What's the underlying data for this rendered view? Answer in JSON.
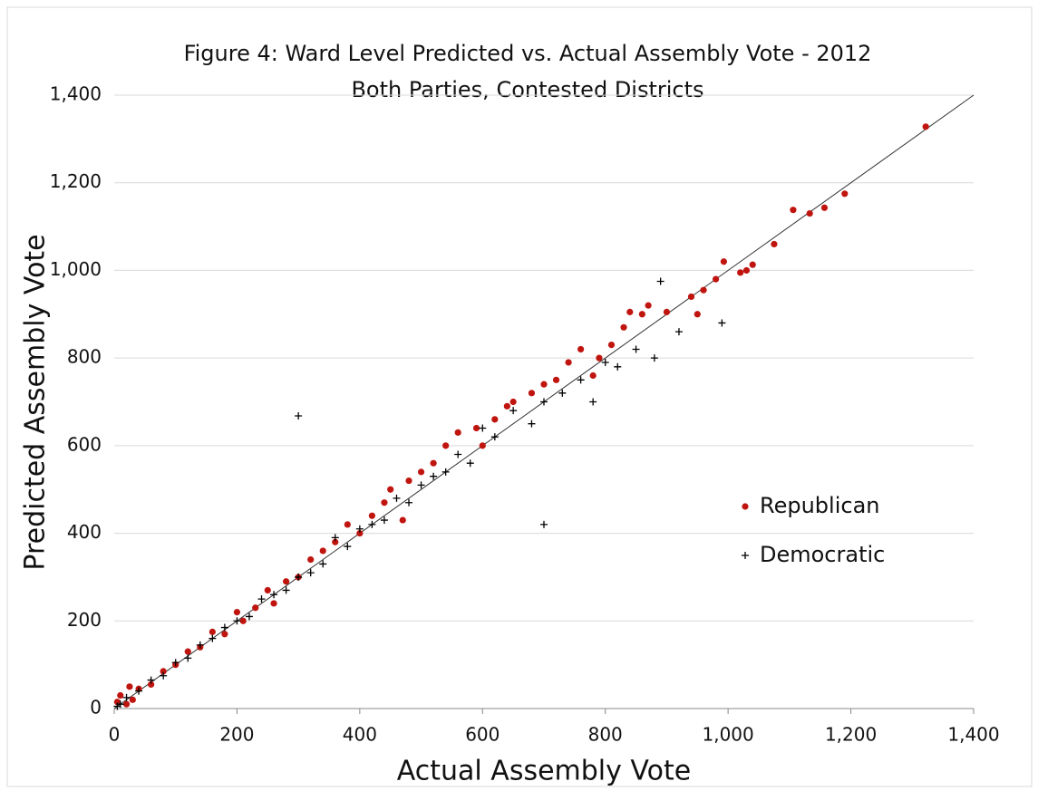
{
  "chart_data": {
    "type": "scatter",
    "title": "Figure 4: Ward Level Predicted vs. Actual Assembly Vote - 2012",
    "subtitle": "Both Parties, Contested Districts",
    "x_label": "Actual Assembly Vote",
    "y_label": "Predicted Assembly Vote",
    "xlim": [
      0,
      1400
    ],
    "ylim": [
      0,
      1400
    ],
    "xticks": [
      0,
      200,
      400,
      600,
      800,
      {
        "value": 1000,
        "label": "1,000"
      },
      {
        "value": 1200,
        "label": "1,200"
      },
      {
        "value": 1400,
        "label": "1,400"
      }
    ],
    "yticks": [
      0,
      200,
      400,
      600,
      800,
      {
        "value": 1000,
        "label": "1,000"
      },
      {
        "value": 1200,
        "label": "1,200"
      },
      {
        "value": 1400,
        "label": "1,400"
      }
    ],
    "grid": true,
    "legend": "right",
    "series": [
      {
        "name": "Republican",
        "color": "#c0150f",
        "marker": "dot",
        "x": [
          1322,
          1190,
          1157,
          1133,
          1106,
          1075,
          1040,
          1030,
          1020,
          993,
          980,
          960,
          950,
          940,
          900,
          870,
          860,
          840,
          830,
          810,
          790,
          780,
          760,
          740,
          720,
          700,
          680,
          650,
          640,
          620,
          600,
          590,
          560,
          540,
          520,
          500,
          480,
          470,
          450,
          440,
          420,
          400,
          380,
          360,
          340,
          320,
          300,
          280,
          260,
          250,
          230,
          210,
          200,
          180,
          160,
          140,
          120,
          100,
          80,
          60,
          40,
          25,
          10,
          5,
          20,
          30
        ],
        "values": [
          1328,
          1175,
          1143,
          1130,
          1138,
          1060,
          1013,
          1000,
          995,
          1020,
          980,
          955,
          900,
          940,
          905,
          920,
          900,
          905,
          870,
          830,
          800,
          760,
          820,
          790,
          750,
          740,
          720,
          700,
          690,
          660,
          600,
          640,
          630,
          600,
          560,
          540,
          520,
          430,
          500,
          470,
          440,
          400,
          420,
          380,
          360,
          340,
          300,
          290,
          240,
          270,
          230,
          200,
          220,
          170,
          175,
          140,
          130,
          100,
          85,
          55,
          45,
          50,
          30,
          15,
          10,
          20
        ]
      },
      {
        "name": "Democratic",
        "color": "#000000",
        "marker": "plus",
        "x": [
          890,
          990,
          700,
          300,
          920,
          880,
          850,
          820,
          800,
          780,
          760,
          730,
          700,
          680,
          650,
          620,
          600,
          580,
          560,
          540,
          520,
          500,
          480,
          460,
          440,
          420,
          400,
          380,
          360,
          340,
          320,
          300,
          280,
          260,
          240,
          220,
          200,
          180,
          160,
          140,
          120,
          100,
          80,
          60,
          40,
          20,
          10,
          5
        ],
        "values": [
          975,
          880,
          420,
          668,
          860,
          800,
          820,
          780,
          790,
          700,
          750,
          720,
          700,
          650,
          680,
          620,
          640,
          560,
          580,
          540,
          530,
          510,
          470,
          480,
          430,
          420,
          410,
          370,
          390,
          330,
          310,
          300,
          270,
          260,
          250,
          210,
          200,
          185,
          160,
          145,
          115,
          105,
          75,
          65,
          40,
          25,
          10,
          5
        ]
      }
    ]
  }
}
